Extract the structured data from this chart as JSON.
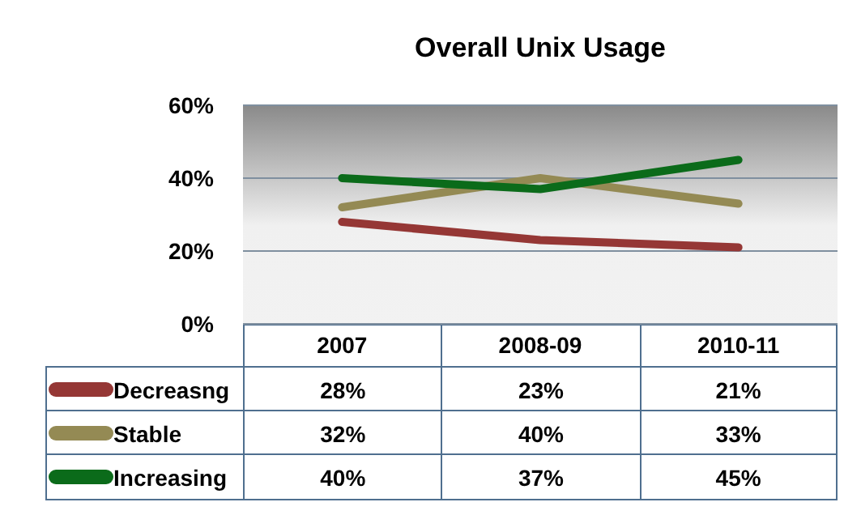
{
  "chart_data": {
    "type": "line",
    "title": "Overall Unix Usage",
    "categories": [
      "2007",
      "2008-09",
      "2010-11"
    ],
    "series": [
      {
        "name": "Decreasng",
        "color": "#953735",
        "values": [
          28,
          23,
          21
        ],
        "value_labels": [
          "28%",
          "23%",
          "21%"
        ]
      },
      {
        "name": "Stable",
        "color": "#948a54",
        "values": [
          32,
          40,
          33
        ],
        "value_labels": [
          "32%",
          "40%",
          "33%"
        ]
      },
      {
        "name": "Increasing",
        "color": "#0b6b1a",
        "values": [
          40,
          37,
          45
        ],
        "value_labels": [
          "40%",
          "37%",
          "45%"
        ]
      }
    ],
    "ylim": [
      0,
      60
    ],
    "yticks": [
      {
        "value": 0,
        "label": "0%"
      },
      {
        "value": 20,
        "label": "20%"
      },
      {
        "value": 40,
        "label": "40%"
      },
      {
        "value": 60,
        "label": "60%"
      }
    ],
    "grid": "y",
    "legend": "bottom",
    "marker": "none",
    "line_style": "solid"
  }
}
